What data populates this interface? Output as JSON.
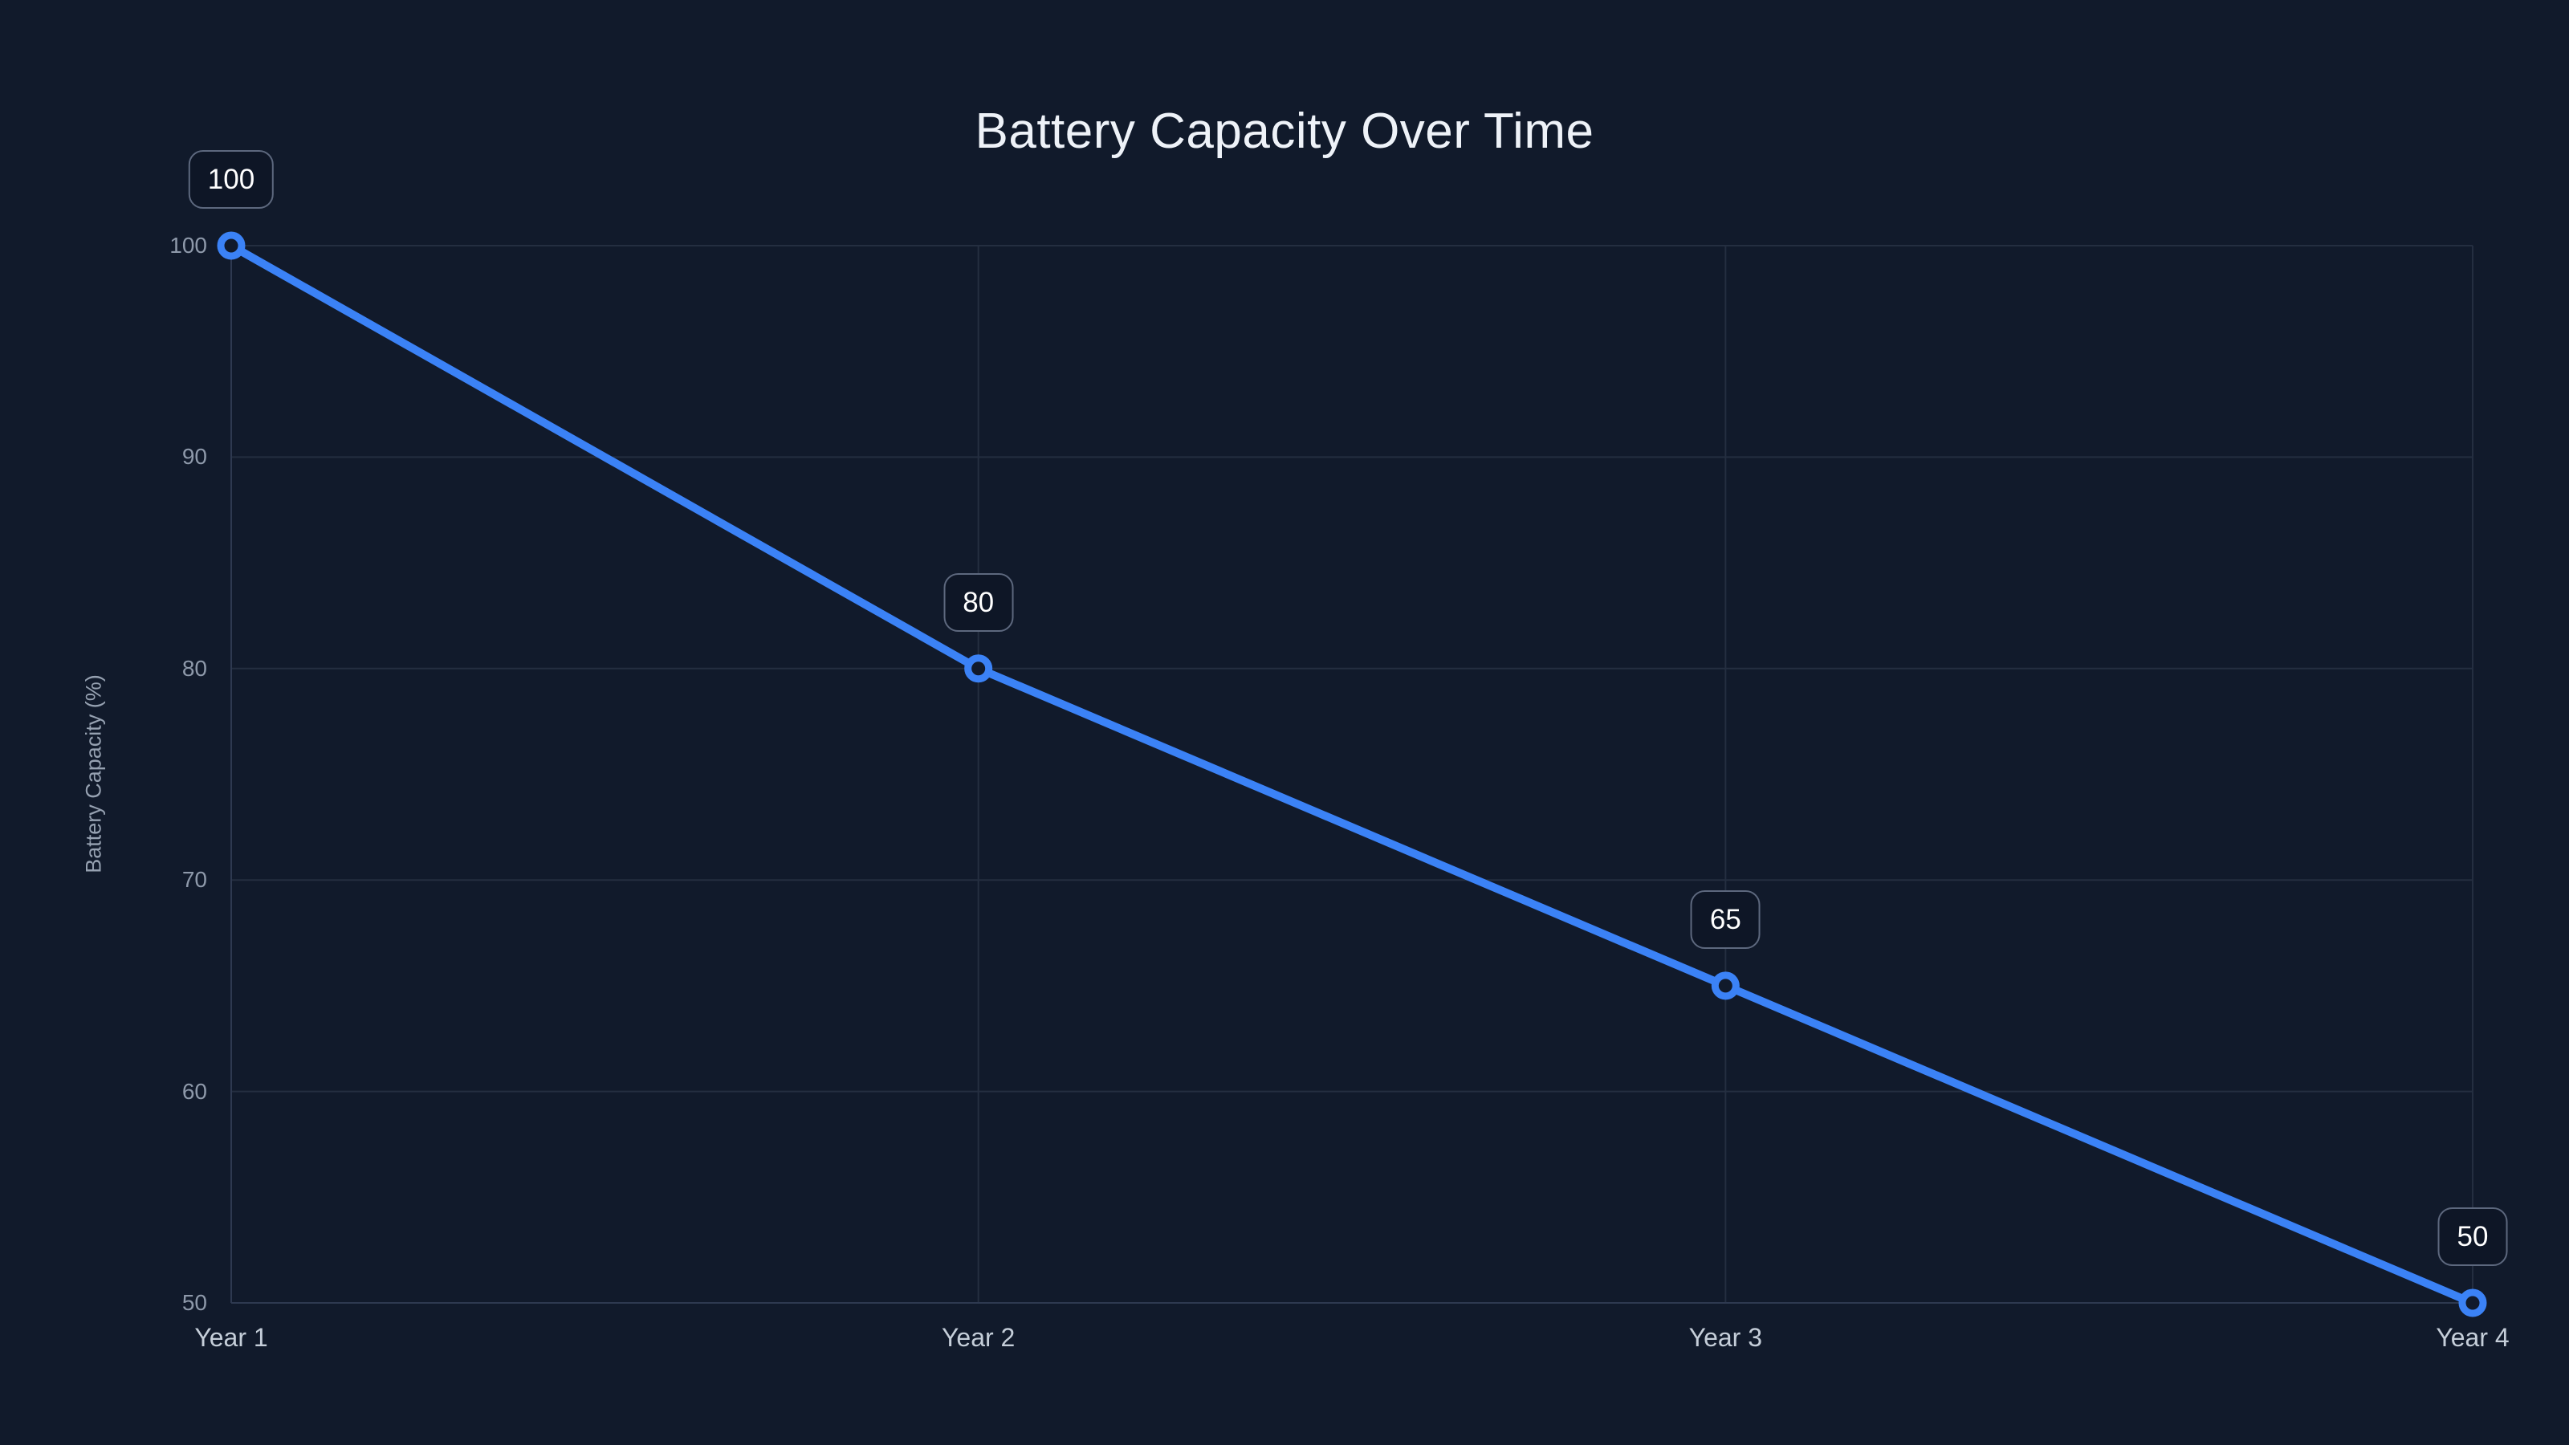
{
  "chart_data": {
    "type": "line",
    "title": "Battery Capacity Over Time",
    "xlabel": "",
    "ylabel": "Battery Capacity (%)",
    "categories": [
      "Year 1",
      "Year 2",
      "Year 3",
      "Year 4"
    ],
    "series": [
      {
        "name": "Battery Capacity",
        "values": [
          100,
          80,
          65,
          50
        ]
      }
    ],
    "point_labels": [
      "100",
      "80",
      "65",
      "50"
    ],
    "y_ticks": [
      50,
      60,
      70,
      80,
      90,
      100
    ],
    "ylim": [
      50,
      100
    ],
    "grid": true,
    "legend_position": "none",
    "colors": {
      "background": "#111a2b",
      "line": "#3b82f6",
      "point_fill": "#111a2b",
      "grid": "#242e40",
      "axis": "#2e3950",
      "title_text": "#eef2f8",
      "y_tick_text": "#8e99aa",
      "x_tick_text": "#c5ced9",
      "badge_border": "#5d687e",
      "badge_background": "#0e1626",
      "badge_text": "#ffffff"
    }
  }
}
